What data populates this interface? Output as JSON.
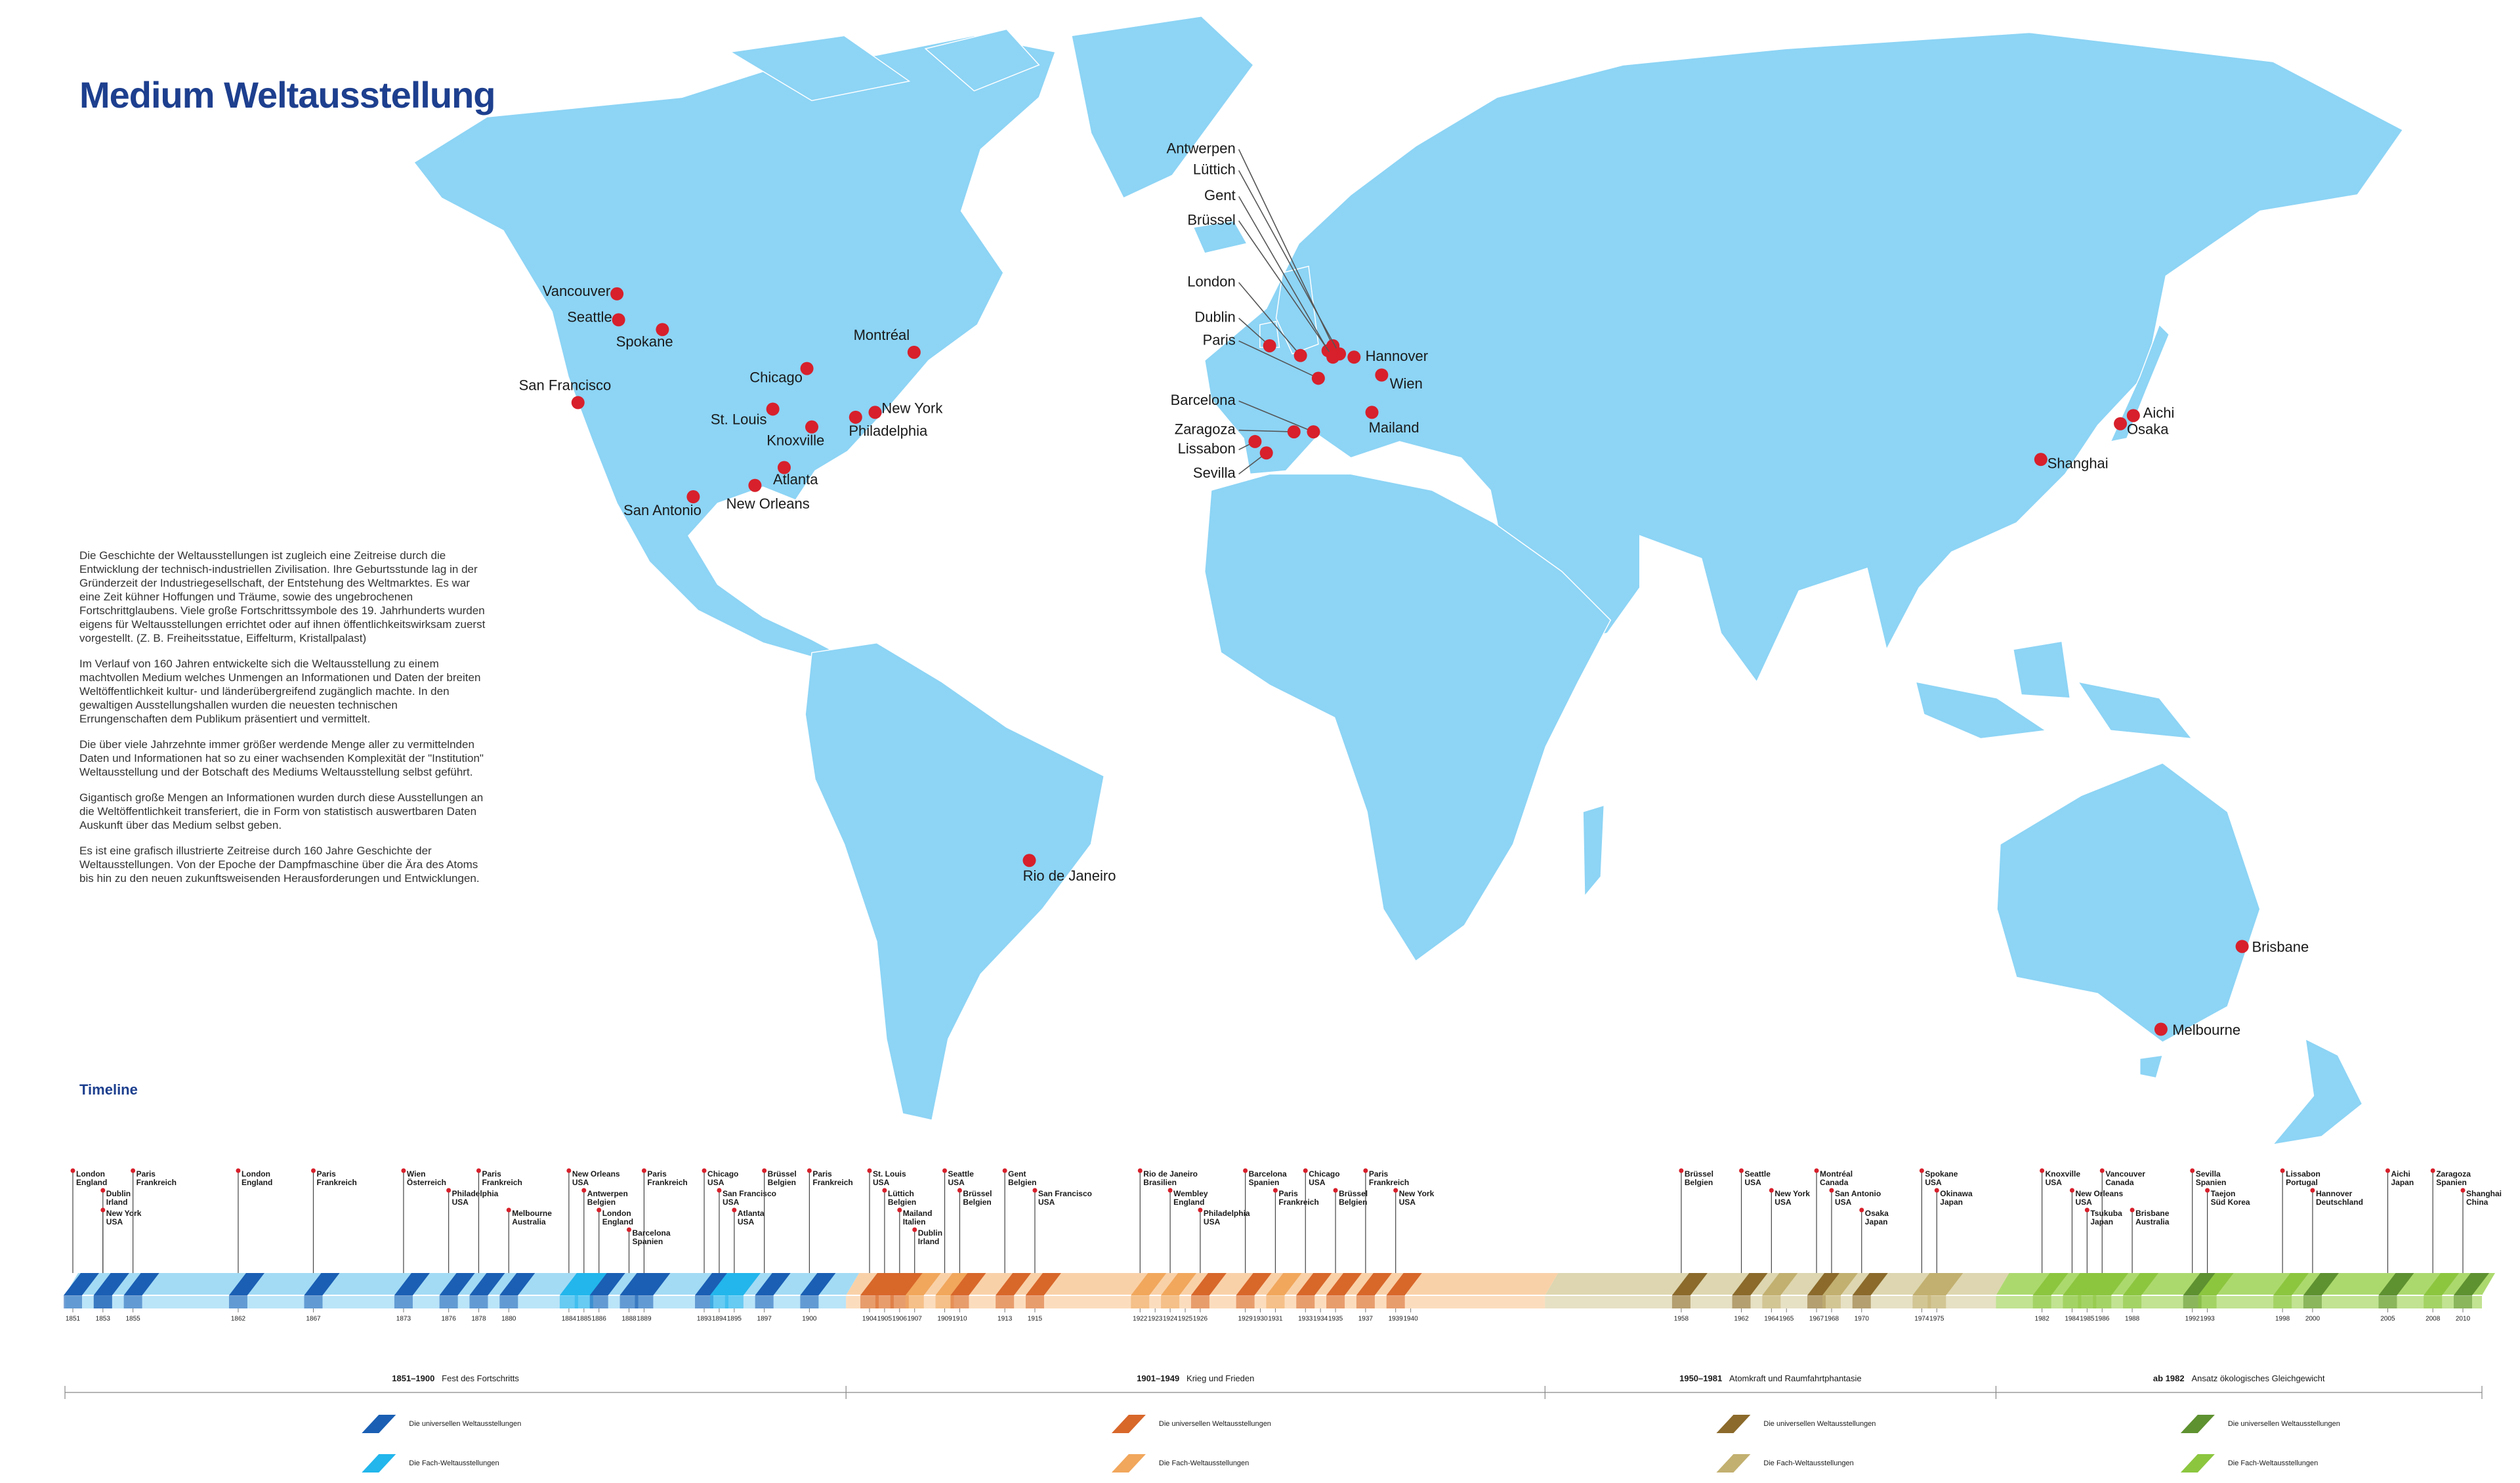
{
  "title": "Medium Weltausstellung",
  "intro": {
    "paragraphs": [
      "Die Geschichte der Weltausstellungen ist zugleich eine Zeitreise durch die Entwicklung der technisch-industriellen Zivilisation. Ihre Geburtsstunde lag in der Gründerzeit der Industriegesellschaft, der Entstehung des Weltmarktes. Es war eine Zeit kühner Hoffungen und Träume, sowie des ungebrochenen Fortschrittglaubens. Viele große Fortschrittssymbole des 19. Jahrhunderts wurden eigens für Weltausstellungen errichtet oder auf ihnen öffentlichkeitswirksam zuerst vorgestellt. (Z. B. Freiheitsstatue, Eiffelturm, Kristallpalast)",
      "Im Verlauf von 160 Jahren entwickelte sich die Weltausstellung zu einem machtvollen Medium welches Unmengen an Informationen und Daten der breiten Weltöffentlichkeit kultur- und länderübergreifend zugänglich machte. In den gewaltigen Ausstellungshallen wurden die neuesten technischen Errungenschaften dem Publikum präsentiert und vermittelt.",
      "Die über viele Jahrzehnte immer größer werdende Menge aller zu vermittelnden Daten und Informationen hat so zu einer wachsenden Komplexität der \"Institution\" Weltausstellung und der Botschaft des Mediums Weltausstellung selbst geführt.",
      "Gigantisch große Mengen an Informationen wurden durch diese Ausstellungen an die Weltöffentlichkeit transferiert, die in Form von statistisch auswertbaren Daten Auskunft über das Medium selbst geben.",
      "Es ist eine grafisch illustrierte Zeitreise durch 160 Jahre Geschichte der Weltausstellungen. Von der Epoche der Dampfmaschine über die Ära des Atoms bis hin zu den neuen zukunftsweisenden Herausforderungen und Entwicklungen."
    ]
  },
  "map": {
    "dot_color": "#d7202b",
    "cities": [
      "Vancouver",
      "Seattle",
      "Spokane",
      "San Francisco",
      "Chicago",
      "St. Louis",
      "Knoxville",
      "New York",
      "Philadelphia",
      "Montréal",
      "Atlanta",
      "New Orleans",
      "San Antonio",
      "Rio de Janeiro",
      "Antwerpen",
      "Lüttich",
      "Gent",
      "Brüssel",
      "London",
      "Dublin",
      "Paris",
      "Hannover",
      "Wien",
      "Barcelona",
      "Zaragoza",
      "Lissabon",
      "Sevilla",
      "Mailand",
      "Shanghai",
      "Aichi",
      "Osaka",
      "Brisbane",
      "Melbourne"
    ]
  },
  "timeline": {
    "heading": "Timeline",
    "ticks": [
      1851,
      1853,
      1855,
      1862,
      1867,
      1873,
      1876,
      1878,
      1880,
      1884,
      1885,
      1886,
      1888,
      1889,
      1893,
      1894,
      1895,
      1897,
      1900,
      1904,
      1905,
      1906,
      1907,
      1909,
      1910,
      1913,
      1915,
      1922,
      1923,
      1924,
      1925,
      1926,
      1929,
      1930,
      1931,
      1933,
      1934,
      1935,
      1937,
      1939,
      1940,
      1958,
      1962,
      1964,
      1965,
      1967,
      1968,
      1970,
      1974,
      1975,
      1982,
      1984,
      1985,
      1986,
      1988,
      1992,
      1993,
      1998,
      2000,
      2005,
      2008,
      2010
    ],
    "eras": [
      {
        "range": "1851–1900",
        "motto": "Fest des Fortschritts",
        "color": "#a3dbf5",
        "legend": [
          {
            "label": "Die universellen Weltausstellungen",
            "color": "#1a5fb4"
          },
          {
            "label": "Die Fach-Weltausstellungen",
            "color": "#22b6ec"
          }
        ],
        "events": [
          {
            "year": 1851,
            "city": "London",
            "country": "England",
            "color": "#1a5fb4"
          },
          {
            "year": 1853,
            "city": "Dublin",
            "country": "Irland",
            "color": "#1a5fb4"
          },
          {
            "year": 1853,
            "city": "New York",
            "country": "USA",
            "color": "#1a5fb4"
          },
          {
            "year": 1855,
            "city": "Paris",
            "country": "Frankreich",
            "color": "#1a5fb4"
          },
          {
            "year": 1862,
            "city": "London",
            "country": "England",
            "color": "#1a5fb4"
          },
          {
            "year": 1867,
            "city": "Paris",
            "country": "Frankreich",
            "color": "#1a5fb4"
          },
          {
            "year": 1873,
            "city": "Wien",
            "country": "Österreich",
            "color": "#1a5fb4"
          },
          {
            "year": 1876,
            "city": "Philadelphia",
            "country": "USA",
            "color": "#1a5fb4"
          },
          {
            "year": 1878,
            "city": "Paris",
            "country": "Frankreich",
            "color": "#1a5fb4"
          },
          {
            "year": 1880,
            "city": "Melbourne",
            "country": "Australia",
            "color": "#1a5fb4"
          },
          {
            "year": 1884,
            "city": "New Orleans",
            "country": "USA",
            "color": "#22b6ec"
          },
          {
            "year": 1885,
            "city": "Antwerpen",
            "country": "Belgien",
            "color": "#22b6ec"
          },
          {
            "year": 1886,
            "city": "London",
            "country": "England",
            "color": "#1a5fb4"
          },
          {
            "year": 1888,
            "city": "Barcelona",
            "country": "Spanien",
            "color": "#1a5fb4"
          },
          {
            "year": 1889,
            "city": "Paris",
            "country": "Frankreich",
            "color": "#1a5fb4"
          },
          {
            "year": 1893,
            "city": "Chicago",
            "country": "USA",
            "color": "#1a5fb4"
          },
          {
            "year": 1894,
            "city": "San Francisco",
            "country": "USA",
            "color": "#22b6ec"
          },
          {
            "year": 1895,
            "city": "Atlanta",
            "country": "USA",
            "color": "#22b6ec"
          },
          {
            "year": 1897,
            "city": "Brüssel",
            "country": "Belgien",
            "color": "#1a5fb4"
          },
          {
            "year": 1900,
            "city": "Paris",
            "country": "Frankreich",
            "color": "#1a5fb4"
          }
        ]
      },
      {
        "range": "1901–1949",
        "motto": "Krieg und Frieden",
        "color": "#f9d1a8",
        "legend": [
          {
            "label": "Die universellen Weltausstellungen",
            "color": "#d8672a"
          },
          {
            "label": "Die Fach-Weltausstellungen",
            "color": "#f1a75c"
          }
        ],
        "events": [
          {
            "year": 1904,
            "city": "St. Louis",
            "country": "USA",
            "color": "#d8672a"
          },
          {
            "year": 1905,
            "city": "Lüttich",
            "country": "Belgien",
            "color": "#d8672a"
          },
          {
            "year": 1906,
            "city": "Mailand",
            "country": "Italien",
            "color": "#d8672a"
          },
          {
            "year": 1907,
            "city": "Dublin",
            "country": "Irland",
            "color": "#f1a75c"
          },
          {
            "year": 1909,
            "city": "Seattle",
            "country": "USA",
            "color": "#f1a75c"
          },
          {
            "year": 1910,
            "city": "Brüssel",
            "country": "Belgien",
            "color": "#d8672a"
          },
          {
            "year": 1913,
            "city": "Gent",
            "country": "Belgien",
            "color": "#d8672a"
          },
          {
            "year": 1915,
            "city": "San Francisco",
            "country": "USA",
            "color": "#d8672a"
          },
          {
            "year": 1922,
            "city": "Rio de Janeiro",
            "country": "Brasilien",
            "color": "#f1a75c"
          },
          {
            "year": 1924,
            "city": "Wembley",
            "country": "England",
            "color": "#f1a75c"
          },
          {
            "year": 1926,
            "city": "Philadelphia",
            "country": "USA",
            "color": "#d8672a"
          },
          {
            "year": 1929,
            "city": "Barcelona",
            "country": "Spanien",
            "color": "#d8672a"
          },
          {
            "year": 1931,
            "city": "Paris",
            "country": "Frankreich",
            "color": "#f1a75c"
          },
          {
            "year": 1933,
            "city": "Chicago",
            "country": "USA",
            "color": "#d8672a"
          },
          {
            "year": 1935,
            "city": "Brüssel",
            "country": "Belgien",
            "color": "#d8672a"
          },
          {
            "year": 1937,
            "city": "Paris",
            "country": "Frankreich",
            "color": "#d8672a"
          },
          {
            "year": 1939,
            "city": "New York",
            "country": "USA",
            "color": "#d8672a"
          }
        ]
      },
      {
        "range": "1950–1981",
        "motto": "Atomkraft und Raumfahrtphantasie",
        "color": "#ddd6b0",
        "legend": [
          {
            "label": "Die universellen Weltausstellungen",
            "color": "#8b6a2b"
          },
          {
            "label": "Die Fach-Weltausstellungen",
            "color": "#c2b070"
          }
        ],
        "events": [
          {
            "year": 1958,
            "city": "Brüssel",
            "country": "Belgien",
            "color": "#8b6a2b"
          },
          {
            "year": 1962,
            "city": "Seattle",
            "country": "USA",
            "color": "#8b6a2b"
          },
          {
            "year": 1964,
            "city": "New York",
            "country": "USA",
            "color": "#c2b070"
          },
          {
            "year": 1967,
            "city": "Montréal",
            "country": "Canada",
            "color": "#8b6a2b"
          },
          {
            "year": 1968,
            "city": "San Antonio",
            "country": "USA",
            "color": "#c2b070"
          },
          {
            "year": 1970,
            "city": "Osaka",
            "country": "Japan",
            "color": "#8b6a2b"
          },
          {
            "year": 1974,
            "city": "Spokane",
            "country": "USA",
            "color": "#c2b070"
          },
          {
            "year": 1975,
            "city": "Okinawa",
            "country": "Japan",
            "color": "#c2b070"
          }
        ]
      },
      {
        "range": "ab 1982",
        "motto": "Ansatz ökologisches Gleichgewicht",
        "color": "#acd96e",
        "legend": [
          {
            "label": "Die universellen Weltausstellungen",
            "color": "#5e9130"
          },
          {
            "label": "Die Fach-Weltausstellungen",
            "color": "#8cc63f"
          }
        ],
        "events": [
          {
            "year": 1982,
            "city": "Knoxville",
            "country": "USA",
            "color": "#8cc63f"
          },
          {
            "year": 1984,
            "city": "New Orleans",
            "country": "USA",
            "color": "#8cc63f"
          },
          {
            "year": 1985,
            "city": "Tsukuba",
            "country": "Japan",
            "color": "#8cc63f"
          },
          {
            "year": 1986,
            "city": "Vancouver",
            "country": "Canada",
            "color": "#8cc63f"
          },
          {
            "year": 1988,
            "city": "Brisbane",
            "country": "Australia",
            "color": "#8cc63f"
          },
          {
            "year": 1992,
            "city": "Sevilla",
            "country": "Spanien",
            "color": "#5e9130"
          },
          {
            "year": 1993,
            "city": "Taejon",
            "country": "Süd Korea",
            "color": "#8cc63f"
          },
          {
            "year": 1998,
            "city": "Lissabon",
            "country": "Portugal",
            "color": "#8cc63f"
          },
          {
            "year": 2000,
            "city": "Hannover",
            "country": "Deutschland",
            "color": "#5e9130"
          },
          {
            "year": 2005,
            "city": "Aichi",
            "country": "Japan",
            "color": "#5e9130"
          },
          {
            "year": 2008,
            "city": "Zaragoza",
            "country": "Spanien",
            "color": "#8cc63f"
          },
          {
            "year": 2010,
            "city": "Shanghai",
            "country": "China",
            "color": "#5e9130"
          }
        ]
      }
    ]
  }
}
